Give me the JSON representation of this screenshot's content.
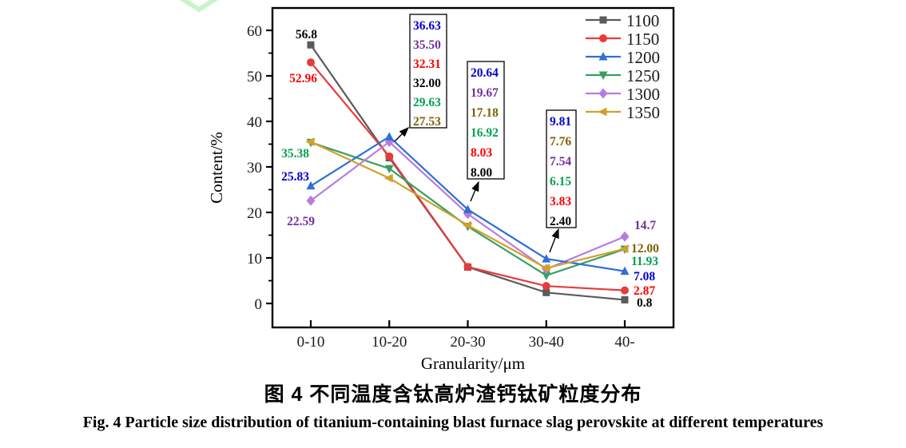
{
  "figure": {
    "caption_zh": "图 4 不同温度含钛高炉渣钙钛矿粒度分布",
    "caption_en": "Fig. 4  Particle size distribution of titanium-containing blast furnace slag perovskite at different temperatures"
  },
  "decorations": {
    "watermark_icon": "chevron-down",
    "watermark_color": "#c9f3c9"
  },
  "chart_data": {
    "type": "line",
    "title": "",
    "xlabel": "Granularity/μm",
    "ylabel": "Content/%",
    "categories": [
      "0-10",
      "10-20",
      "20-30",
      "30-40",
      "40-"
    ],
    "yticks": [
      0,
      10,
      20,
      30,
      40,
      50,
      60
    ],
    "ylim": [
      -5,
      65
    ],
    "grid": false,
    "legend_position": "top-right-inside",
    "series": [
      {
        "name": "1100",
        "marker": "square",
        "color": "#5a5a5a",
        "label_color": "#000000",
        "values": [
          56.8,
          32.0,
          8.0,
          2.4,
          0.8
        ]
      },
      {
        "name": "1150",
        "marker": "circle",
        "color": "#e73b3c",
        "label_color": "#fe0000",
        "values": [
          52.96,
          32.31,
          8.03,
          3.83,
          2.87
        ]
      },
      {
        "name": "1200",
        "marker": "triangle-up",
        "color": "#2f6fd6",
        "label_color": "#0000cd",
        "values": [
          25.83,
          36.63,
          20.64,
          9.81,
          7.08
        ]
      },
      {
        "name": "1250",
        "marker": "triangle-down",
        "color": "#35a05e",
        "label_color": "#00a050",
        "values": [
          35.38,
          29.63,
          16.92,
          6.15,
          11.93
        ]
      },
      {
        "name": "1300",
        "marker": "diamond",
        "color": "#b87ce0",
        "label_color": "#7030a0",
        "values": [
          22.59,
          35.5,
          19.67,
          7.54,
          14.7
        ]
      },
      {
        "name": "1350",
        "marker": "triangle-left",
        "color": "#d2a02a",
        "label_color": "#7f6000",
        "values": [
          35.5,
          27.53,
          17.18,
          7.76,
          12.0
        ]
      }
    ],
    "point_labels": [
      {
        "series": "1100",
        "category": "0-10",
        "text": "56.8"
      },
      {
        "series": "1150",
        "category": "0-10",
        "text": "52.96"
      },
      {
        "series": "1250",
        "category": "0-10",
        "text": "35.38"
      },
      {
        "series": "1200",
        "category": "0-10",
        "text": "25.83"
      },
      {
        "series": "1300",
        "category": "0-10",
        "text": "22.59"
      },
      {
        "series": "1300",
        "category": "40-",
        "text": "14.7"
      },
      {
        "series": "1350",
        "category": "40-",
        "text": "12.00"
      },
      {
        "series": "1250",
        "category": "40-",
        "text": "11.93"
      },
      {
        "series": "1200",
        "category": "40-",
        "text": "7.08"
      },
      {
        "series": "1150",
        "category": "40-",
        "text": "2.87"
      },
      {
        "series": "1100",
        "category": "40-",
        "text": "0.8"
      }
    ],
    "callouts": [
      {
        "category": "10-20",
        "entries": [
          {
            "series": "1200",
            "text": "36.63"
          },
          {
            "series": "1300",
            "text": "35.50"
          },
          {
            "series": "1150",
            "text": "32.31"
          },
          {
            "series": "1100",
            "text": "32.00"
          },
          {
            "series": "1250",
            "text": "29.63"
          },
          {
            "series": "1350",
            "text": "27.53"
          }
        ]
      },
      {
        "category": "20-30",
        "entries": [
          {
            "series": "1200",
            "text": "20.64"
          },
          {
            "series": "1300",
            "text": "19.67"
          },
          {
            "series": "1350",
            "text": "17.18"
          },
          {
            "series": "1250",
            "text": "16.92"
          },
          {
            "series": "1150",
            "text": "8.03"
          },
          {
            "series": "1100",
            "text": "8.00"
          }
        ]
      },
      {
        "category": "30-40",
        "entries": [
          {
            "series": "1200",
            "text": "9.81"
          },
          {
            "series": "1350",
            "text": "7.76"
          },
          {
            "series": "1300",
            "text": "7.54"
          },
          {
            "series": "1250",
            "text": "6.15"
          },
          {
            "series": "1150",
            "text": "3.83"
          },
          {
            "series": "1100",
            "text": "2.40"
          }
        ]
      }
    ]
  }
}
